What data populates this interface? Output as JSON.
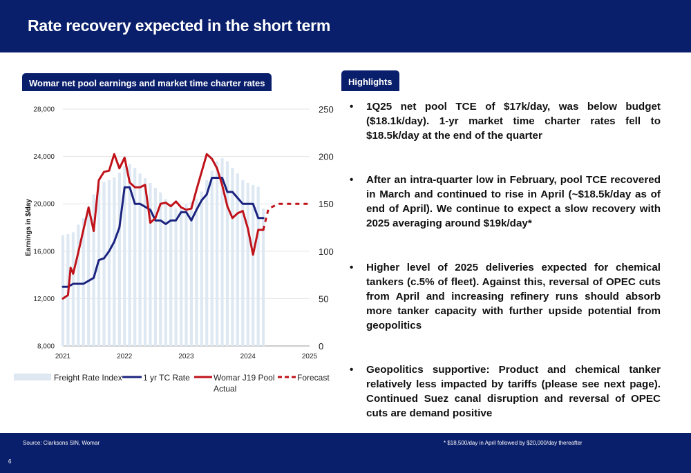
{
  "title": "Rate recovery expected in the short term",
  "chart_tag": "Womar net pool earnings and market time charter rates",
  "highlights_tag": "Highlights",
  "highlights": [
    "1Q25 net pool TCE of $17k/day, was below budget ($18.1k/day). 1-yr market time charter rates fell to $18.5k/day at the end of the quarter",
    "After an intra-quarter low in February, pool TCE recovered in March and continued to rise in April (~$18.5k/day as of end of April). We continue to expect a slow recovery with 2025 averaging around $19k/day*",
    "Higher level of 2025 deliveries expected for chemical tankers (c.5% of fleet). Against this, reversal of OPEC cuts from April and increasing refinery runs should absorb more tanker capacity with further upside potential from geopolitics",
    "Geopolitics supportive: Product and chemical tanker relatively less impacted by tariffs (please see next page). Continued Suez canal disruption and reversal of OPEC cuts are demand positive"
  ],
  "bullet_char": "•",
  "footer": {
    "source": "Source: Clarksons SIN, Womar",
    "note": "*  $18,500/day in April followed by $20,000/day thereafter",
    "page": "6"
  },
  "colors": {
    "navy": "#0a1f6b",
    "bars": "#dde8f3",
    "tc_line": "#1a237e",
    "pool_line": "#c0121a"
  },
  "chart_data": {
    "type": "line",
    "ylabel": "Earnings in $/day",
    "y_left_ticks": [
      "8,000",
      "12,000",
      "16,000",
      "20,000",
      "24,000",
      "28,000"
    ],
    "y_left_range": [
      8000,
      28000
    ],
    "y_right_ticks": [
      "0",
      "50",
      "100",
      "150",
      "200",
      "250"
    ],
    "y_right_range": [
      0,
      250
    ],
    "x_ticks": [
      "2021",
      "2022",
      "2023",
      "2024",
      "2025"
    ],
    "x_range": [
      2021,
      2025
    ],
    "grid": true,
    "legend_position": "bottom",
    "series": [
      {
        "name": "Freight Rate Index",
        "kind": "bar",
        "axis": "right",
        "x": [
          2021.0,
          2021.083,
          2021.167,
          2021.25,
          2021.333,
          2021.417,
          2021.5,
          2021.583,
          2021.667,
          2021.75,
          2021.833,
          2021.917,
          2022.0,
          2022.083,
          2022.167,
          2022.25,
          2022.333,
          2022.417,
          2022.5,
          2022.583,
          2022.667,
          2022.75,
          2022.833,
          2022.917,
          2023.0,
          2023.083,
          2023.167,
          2023.25,
          2023.333,
          2023.417,
          2023.5,
          2023.583,
          2023.667,
          2023.75,
          2023.833,
          2023.917,
          2024.0,
          2024.083,
          2024.167,
          2024.25
        ],
        "values": [
          117,
          118,
          120,
          128,
          135,
          145,
          160,
          170,
          173,
          175,
          178,
          183,
          190,
          192,
          188,
          182,
          177,
          172,
          167,
          162,
          155,
          150,
          145,
          147,
          150,
          152,
          155,
          163,
          175,
          185,
          195,
          198,
          195,
          188,
          182,
          175,
          172,
          170,
          168,
          145
        ]
      },
      {
        "name": "1 yr TC Rate",
        "kind": "line",
        "axis": "left",
        "x": [
          2021.0,
          2021.083,
          2021.167,
          2021.25,
          2021.333,
          2021.417,
          2021.5,
          2021.583,
          2021.667,
          2021.75,
          2021.833,
          2021.917,
          2022.0,
          2022.083,
          2022.167,
          2022.25,
          2022.333,
          2022.417,
          2022.5,
          2022.583,
          2022.667,
          2022.75,
          2022.833,
          2022.917,
          2023.0,
          2023.083,
          2023.167,
          2023.25,
          2023.333,
          2023.417,
          2023.5,
          2023.583,
          2023.667,
          2023.75,
          2023.833,
          2023.917,
          2024.0,
          2024.083,
          2024.167,
          2024.25
        ],
        "values": [
          13000,
          13000,
          13250,
          13250,
          13250,
          13500,
          13750,
          15250,
          15400,
          16000,
          16800,
          18000,
          21400,
          21400,
          20000,
          20000,
          19750,
          19500,
          18600,
          18600,
          18300,
          18600,
          18600,
          19300,
          19300,
          18600,
          19500,
          20300,
          20800,
          22200,
          22200,
          22200,
          21000,
          21000,
          20500,
          20000,
          20000,
          20000,
          18800,
          18800
        ]
      },
      {
        "name": "Womar J19 Pool Actual",
        "kind": "line",
        "axis": "left",
        "x": [
          2021.0,
          2021.083,
          2021.125,
          2021.167,
          2021.25,
          2021.333,
          2021.417,
          2021.5,
          2021.583,
          2021.667,
          2021.75,
          2021.833,
          2021.917,
          2022.0,
          2022.083,
          2022.167,
          2022.25,
          2022.333,
          2022.417,
          2022.5,
          2022.583,
          2022.667,
          2022.75,
          2022.833,
          2022.917,
          2023.0,
          2023.083,
          2023.167,
          2023.25,
          2023.333,
          2023.417,
          2023.5,
          2023.583,
          2023.667,
          2023.75,
          2023.833,
          2023.917,
          2024.0,
          2024.083,
          2024.167,
          2024.25
        ],
        "values": [
          12000,
          12300,
          14600,
          14100,
          15900,
          17800,
          19700,
          17700,
          22000,
          22700,
          22800,
          24200,
          23000,
          23900,
          21800,
          21400,
          21400,
          21600,
          18400,
          18800,
          20000,
          20100,
          19800,
          20200,
          19700,
          19500,
          19600,
          21200,
          22700,
          24200,
          23800,
          23000,
          21600,
          19800,
          18800,
          19200,
          19400,
          17900,
          15700,
          17800,
          17800
        ],
        "points": null
      },
      {
        "name": "Forecast",
        "kind": "line",
        "style": "dashed",
        "axis": "left",
        "x": [
          2024.25,
          2024.333,
          2024.417,
          2024.5,
          2024.583,
          2024.667,
          2024.75,
          2024.833,
          2024.917,
          2025.0
        ],
        "values": [
          17800,
          19600,
          19800,
          20000,
          20000,
          20000,
          20000,
          20000,
          20000,
          20000
        ]
      }
    ]
  }
}
